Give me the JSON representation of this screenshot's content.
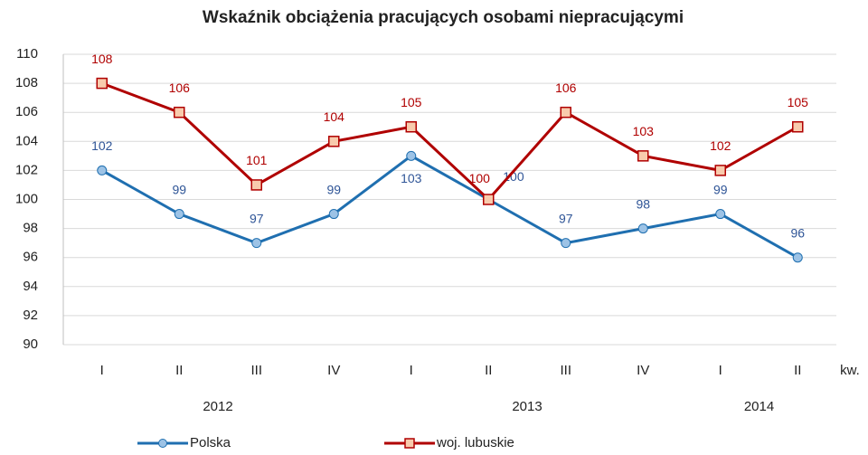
{
  "chart_data": {
    "type": "line",
    "title": "Wskaźnik obciążenia pracujących osobami niepracującymi",
    "x_label": "kw.",
    "groups": [
      {
        "name": "2012",
        "categories": [
          "I",
          "II",
          "III",
          "IV"
        ]
      },
      {
        "name": "2013",
        "categories": [
          "I",
          "II",
          "III",
          "IV"
        ]
      },
      {
        "name": "2014",
        "categories": [
          "I",
          "II"
        ]
      }
    ],
    "series": [
      {
        "name": "Polska",
        "color": "#1f6fb0",
        "marker_fill": "#9dc3e6",
        "label_color": "#2f5597",
        "values": [
          102,
          99,
          97,
          99,
          103,
          100,
          97,
          98,
          99,
          96
        ]
      },
      {
        "name": "woj. lubuskie",
        "color": "#b00000",
        "marker_fill": "#f8cbad",
        "label_color": "#b00000",
        "values": [
          108,
          106,
          101,
          104,
          105,
          100,
          106,
          103,
          102,
          105
        ]
      }
    ],
    "ylim": [
      90,
      110
    ],
    "yticks": [
      90,
      92,
      94,
      96,
      98,
      100,
      102,
      104,
      106,
      108,
      110
    ],
    "grid": true,
    "legend": "bottom"
  }
}
